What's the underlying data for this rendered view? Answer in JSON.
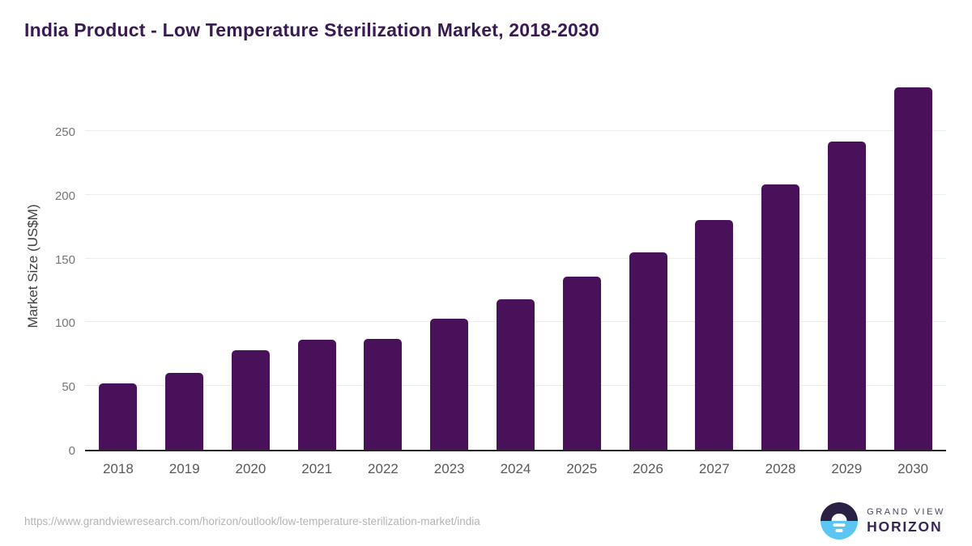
{
  "title": "India Product - Low Temperature Sterilization Market, 2018-2030",
  "chart_data": {
    "type": "bar",
    "title": "India Product - Low Temperature Sterilization Market, 2018-2030",
    "categories": [
      "2018",
      "2019",
      "2020",
      "2021",
      "2022",
      "2023",
      "2024",
      "2025",
      "2026",
      "2027",
      "2028",
      "2029",
      "2030"
    ],
    "values": [
      52,
      60,
      78,
      86,
      87,
      103,
      118,
      136,
      155,
      180,
      208,
      242,
      284
    ],
    "xlabel": "",
    "ylabel": "Market Size (US$M)",
    "ylim": [
      0,
      290
    ],
    "yticks": [
      0,
      50,
      100,
      150,
      200,
      250
    ],
    "grid": true,
    "legend": false,
    "bar_color": "#49115a",
    "gridline_color": "#ececec",
    "axis_line_color": "#262626"
  },
  "footer": {
    "source_url": "https://www.grandviewresearch.com/horizon/outlook/low-temperature-sterilization-market/india",
    "logo": {
      "line1": "GRAND VIEW",
      "line2": "HORIZON",
      "dark_color": "#2b2144",
      "blue_color": "#5cc5f1"
    }
  },
  "colors": {
    "background": "#ffffff",
    "title_text": "#3a1a52",
    "x_tick_text": "#595959",
    "y_tick_text": "#757575",
    "url_text": "#b4b4b4"
  }
}
